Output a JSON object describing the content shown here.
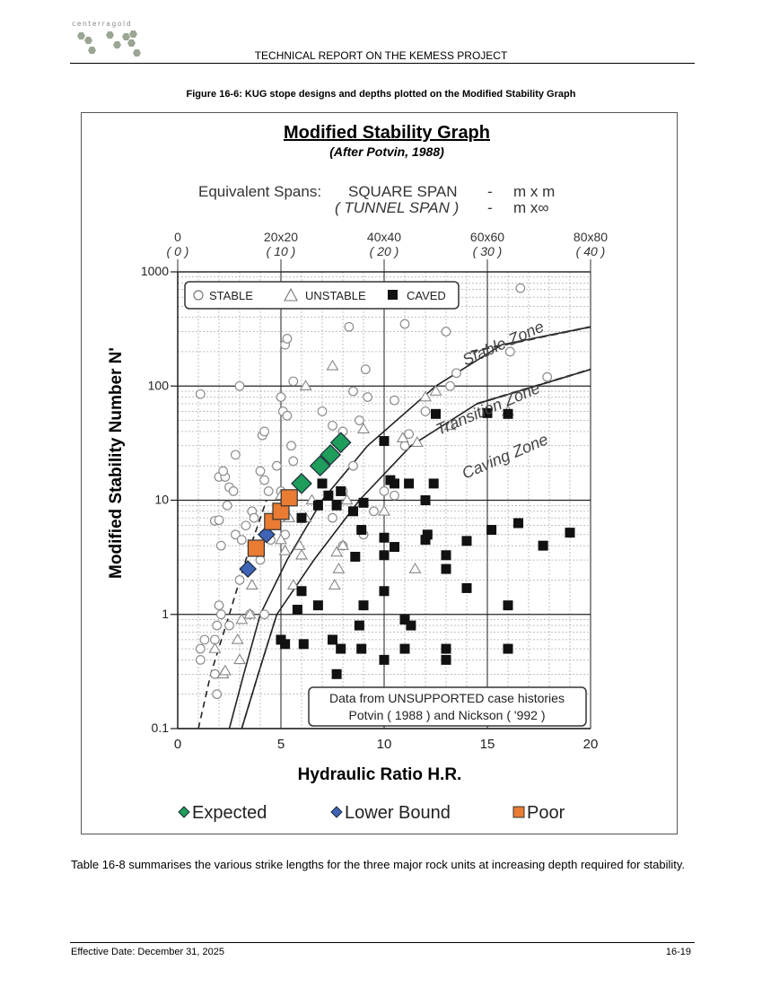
{
  "header": {
    "logo_text": "centerragold",
    "title": "TECHNICAL REPORT ON THE KEMESS PROJECT"
  },
  "figure": {
    "caption": "Figure 16-6: KUG stope designs and depths plotted on the Modified Stability Graph"
  },
  "chart_data": {
    "type": "scatter",
    "title": "Modified Stability Graph",
    "subtitle": "(After Potvin, 1988)",
    "spans_line1_label": "Equivalent Spans:",
    "spans_line1": "SQUARE SPAN",
    "spans_line1_dash": "-",
    "spans_line1_unit": "m x m",
    "spans_line2": "( TUNNEL SPAN )",
    "spans_line2_dash": "-",
    "spans_line2_unit": "m x∞",
    "xlabel": "Hydraulic Ratio H.R.",
    "ylabel": "Modified Stability Number N'",
    "x_log": false,
    "y_log": true,
    "xlim": [
      0,
      20
    ],
    "ylim": [
      0.1,
      1000
    ],
    "x_ticks": [
      {
        "value": 0,
        "label": "0"
      },
      {
        "value": 5,
        "label": "5"
      },
      {
        "value": 10,
        "label": "10"
      },
      {
        "value": 15,
        "label": "15"
      },
      {
        "value": 20,
        "label": "20"
      }
    ],
    "y_ticks": [
      {
        "value": 0.1,
        "label": "0.1"
      },
      {
        "value": 1,
        "label": "1"
      },
      {
        "value": 10,
        "label": "10"
      },
      {
        "value": 100,
        "label": "100"
      },
      {
        "value": 1000,
        "label": "1000"
      }
    ],
    "top_ticks": [
      {
        "value": 0,
        "label": "0",
        "sub": "( 0 )"
      },
      {
        "value": 5,
        "label": "20x20",
        "sub": "( 10 )"
      },
      {
        "value": 10,
        "label": "40x40",
        "sub": "( 20 )"
      },
      {
        "value": 15,
        "label": "60x60",
        "sub": "( 30 )"
      },
      {
        "value": 20,
        "label": "80x80",
        "sub": "( 40 )"
      }
    ],
    "grid": true,
    "legend_position": "top-left",
    "legend_items": [
      "STABLE",
      "UNSTABLE",
      "CAVED"
    ],
    "zone_labels": [
      "Stable Zone",
      "Transition Zone",
      "Caving Zone"
    ],
    "note_lines": [
      "Data from UNSUPPORTED case histories",
      "Potvin ( 1988 )  and  Nickson ( '992 )"
    ],
    "bottom_legend": [
      {
        "name": "Expected",
        "color": "#1e9d5b"
      },
      {
        "name": "Lower Bound",
        "color": "#3f63b5"
      },
      {
        "name": "Poor",
        "color": "#ea7b33"
      }
    ],
    "colors": {
      "expected": "#1e9d5b",
      "lower_bound": "#3f63b5",
      "poor": "#ea7b33"
    },
    "boundaries": {
      "stable_transition": [
        [
          2.5,
          0.1
        ],
        [
          3.2,
          0.3
        ],
        [
          4.0,
          1
        ],
        [
          5.3,
          3
        ],
        [
          7.0,
          10
        ],
        [
          9.2,
          30
        ],
        [
          12.5,
          100
        ],
        [
          15.7,
          230
        ],
        [
          20,
          330
        ]
      ],
      "transition_caving": [
        [
          3.1,
          0.1
        ],
        [
          3.9,
          0.3
        ],
        [
          4.8,
          1
        ],
        [
          6.6,
          3
        ],
        [
          8.8,
          10
        ],
        [
          11.3,
          30
        ],
        [
          14.5,
          70
        ],
        [
          20,
          140
        ]
      ],
      "left_lower_dashed": [
        [
          1.0,
          0.1
        ],
        [
          1.6,
          0.3
        ],
        [
          2.5,
          1
        ],
        [
          3.3,
          3
        ],
        [
          4.3,
          10
        ]
      ]
    },
    "series": [
      {
        "name": "Expected",
        "marker": "diamond",
        "color": "#1e9d5b",
        "points": [
          [
            6.0,
            14
          ],
          [
            6.9,
            20
          ],
          [
            7.4,
            25
          ],
          [
            7.9,
            32
          ]
        ]
      },
      {
        "name": "Lower Bound",
        "marker": "diamond",
        "color": "#3f63b5",
        "points": [
          [
            3.4,
            2.5
          ],
          [
            4.3,
            5
          ]
        ]
      },
      {
        "name": "Poor",
        "marker": "square",
        "color": "#ea7b33",
        "points": [
          [
            3.8,
            3.8
          ],
          [
            4.6,
            6.5
          ],
          [
            5.0,
            8
          ],
          [
            5.4,
            10.5
          ]
        ]
      },
      {
        "name": "STABLE",
        "marker": "circle",
        "points": [
          [
            1.1,
            0.5
          ],
          [
            1.1,
            0.4
          ],
          [
            1.3,
            0.6
          ],
          [
            1.8,
            0.6
          ],
          [
            1.9,
            0.2
          ],
          [
            1.8,
            0.3
          ],
          [
            2.0,
            1.2
          ],
          [
            2.1,
            1.0
          ],
          [
            1.9,
            0.8
          ],
          [
            2.5,
            0.8
          ],
          [
            3.5,
            1.0
          ],
          [
            4.2,
            1.0
          ],
          [
            1.8,
            6.6
          ],
          [
            2.0,
            6.7
          ],
          [
            2.0,
            16
          ],
          [
            2.3,
            16
          ],
          [
            2.5,
            13
          ],
          [
            2.7,
            12
          ],
          [
            2.2,
            18
          ],
          [
            2.1,
            4
          ],
          [
            2.4,
            9
          ],
          [
            2.8,
            5
          ],
          [
            3.0,
            2
          ],
          [
            3.1,
            4.5
          ],
          [
            3.3,
            6
          ],
          [
            3.6,
            8
          ],
          [
            3.7,
            7
          ],
          [
            4.0,
            18
          ],
          [
            4.2,
            15
          ],
          [
            4.4,
            12
          ],
          [
            4.5,
            4.5
          ],
          [
            4.0,
            3.0
          ],
          [
            4.1,
            37
          ],
          [
            4.2,
            40
          ],
          [
            4.8,
            20
          ],
          [
            5.0,
            12
          ],
          [
            5.0,
            7
          ],
          [
            5.2,
            5
          ],
          [
            5.5,
            30
          ],
          [
            5.6,
            22
          ],
          [
            5.1,
            60
          ],
          [
            5.3,
            55
          ],
          [
            5.0,
            80
          ],
          [
            5.2,
            230
          ],
          [
            5.3,
            260
          ],
          [
            1.1,
            85
          ],
          [
            2.8,
            25
          ],
          [
            3.0,
            100
          ],
          [
            5.6,
            110
          ],
          [
            7.5,
            7
          ],
          [
            8.0,
            12
          ],
          [
            8.0,
            4
          ],
          [
            8.5,
            20
          ],
          [
            9.0,
            5
          ],
          [
            9.5,
            8
          ],
          [
            8.8,
            50
          ],
          [
            8.3,
            330
          ],
          [
            9.1,
            140
          ],
          [
            9.2,
            80
          ],
          [
            10.5,
            75
          ],
          [
            11.0,
            30
          ],
          [
            11.2,
            38
          ],
          [
            12.0,
            60
          ],
          [
            13.2,
            100
          ],
          [
            13.5,
            130
          ],
          [
            10.0,
            12
          ],
          [
            10.5,
            11
          ],
          [
            13.0,
            300
          ],
          [
            16.1,
            200
          ],
          [
            16.6,
            720
          ],
          [
            17.9,
            120
          ],
          [
            11.0,
            350
          ],
          [
            8.0,
            40
          ],
          [
            8.5,
            90
          ],
          [
            7.0,
            60
          ],
          [
            7.5,
            45
          ]
        ]
      },
      {
        "name": "UNSTABLE",
        "marker": "triangle",
        "points": [
          [
            1.8,
            0.5
          ],
          [
            2.2,
            0.3
          ],
          [
            2.3,
            0.32
          ],
          [
            2.9,
            0.6
          ],
          [
            3.0,
            0.4
          ],
          [
            3.5,
            1.0
          ],
          [
            3.6,
            1.8
          ],
          [
            3.1,
            0.9
          ],
          [
            5.0,
            4.5
          ],
          [
            5.2,
            3.6
          ],
          [
            5.4,
            7.0
          ],
          [
            5.0,
            11
          ],
          [
            5.9,
            4.0
          ],
          [
            6.0,
            3.3
          ],
          [
            5.6,
            1.8
          ],
          [
            6.2,
            7
          ],
          [
            6.5,
            10
          ],
          [
            7.7,
            3.5
          ],
          [
            7.8,
            2.5
          ],
          [
            7.6,
            1.8
          ],
          [
            8.0,
            4
          ],
          [
            8.2,
            10
          ],
          [
            9.0,
            42
          ],
          [
            7.5,
            150
          ],
          [
            6.2,
            100
          ],
          [
            10.0,
            8
          ],
          [
            10.9,
            35
          ],
          [
            11.6,
            32
          ],
          [
            12.0,
            80
          ],
          [
            12.5,
            90
          ],
          [
            13.2,
            45
          ],
          [
            11.5,
            2.5
          ],
          [
            16.0,
            60
          ]
        ]
      },
      {
        "name": "CAVED",
        "marker": "square",
        "points": [
          [
            5.0,
            0.6
          ],
          [
            5.2,
            0.55
          ],
          [
            6.1,
            0.55
          ],
          [
            5.8,
            1.1
          ],
          [
            6.0,
            1.6
          ],
          [
            6.8,
            1.2
          ],
          [
            7.5,
            0.6
          ],
          [
            7.7,
            0.3
          ],
          [
            7.9,
            0.5
          ],
          [
            8.9,
            0.5
          ],
          [
            8.8,
            0.8
          ],
          [
            9.0,
            1.2
          ],
          [
            10.0,
            0.4
          ],
          [
            11.0,
            0.5
          ],
          [
            11.0,
            0.9
          ],
          [
            11.3,
            0.8
          ],
          [
            13.0,
            0.5
          ],
          [
            13.0,
            0.4
          ],
          [
            16.0,
            0.5
          ],
          [
            16.0,
            1.2
          ],
          [
            10.0,
            1.6
          ],
          [
            14.0,
            1.7
          ],
          [
            6.0,
            7
          ],
          [
            6.8,
            9
          ],
          [
            7.0,
            14
          ],
          [
            7.3,
            11
          ],
          [
            7.7,
            9
          ],
          [
            7.9,
            12
          ],
          [
            8.5,
            8
          ],
          [
            8.9,
            5.5
          ],
          [
            8.6,
            3.2
          ],
          [
            9.0,
            9.5
          ],
          [
            10.0,
            3.3
          ],
          [
            10.0,
            4.7
          ],
          [
            10.5,
            3.9
          ],
          [
            10.3,
            15
          ],
          [
            10.5,
            14
          ],
          [
            11.2,
            14
          ],
          [
            12.0,
            4.5
          ],
          [
            12.1,
            5.0
          ],
          [
            12.0,
            10
          ],
          [
            12.4,
            14
          ],
          [
            13.0,
            3.3
          ],
          [
            13.0,
            2.5
          ],
          [
            14.0,
            4.4
          ],
          [
            15.2,
            5.5
          ],
          [
            16.5,
            6.3
          ],
          [
            17.7,
            4.0
          ],
          [
            19.0,
            5.2
          ],
          [
            12.5,
            57
          ],
          [
            15.0,
            58
          ],
          [
            16.0,
            57
          ],
          [
            10.0,
            33
          ]
        ]
      }
    ]
  },
  "body": {
    "paragraph": "Table 16-8 summarises the various strike lengths for the three major rock units at increasing depth required for stability."
  },
  "footer": {
    "left": "Effective Date: December 31, 2025",
    "right": "16-19"
  }
}
